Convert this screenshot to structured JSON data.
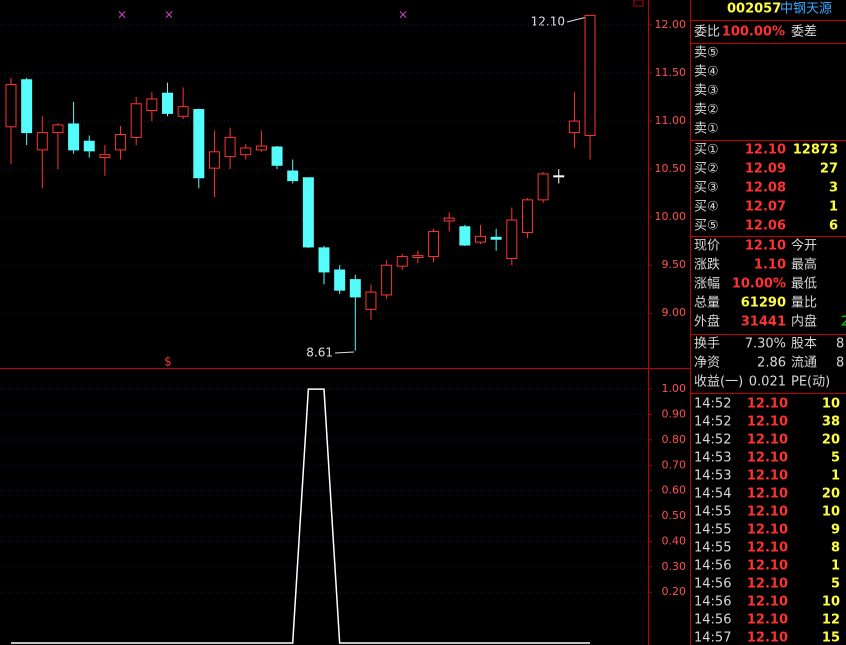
{
  "chart_data": [
    {
      "type": "candlestick",
      "up_color": "#ff3232",
      "down_color": "#54fcfc",
      "flat_color": "#ffffff",
      "grid": true,
      "open": [
        10.94,
        11.43,
        10.7,
        10.88,
        10.97,
        10.79,
        10.62,
        10.7,
        10.83,
        11.11,
        11.29,
        11.05,
        11.12,
        10.51,
        10.63,
        10.65,
        10.7,
        10.73,
        10.48,
        10.41,
        9.68,
        9.45,
        9.35,
        9.04,
        9.19,
        9.49,
        9.58,
        9.59,
        9.96,
        9.9,
        9.74,
        9.79,
        9.57,
        9.84,
        10.18,
        10.43,
        10.88,
        10.85
      ],
      "high": [
        11.45,
        11.45,
        11.05,
        10.98,
        11.2,
        10.85,
        10.75,
        10.95,
        11.25,
        11.3,
        11.4,
        11.35,
        11.13,
        10.9,
        10.93,
        10.76,
        10.9,
        10.74,
        10.6,
        10.41,
        9.7,
        9.5,
        9.4,
        9.3,
        9.55,
        9.62,
        9.65,
        9.88,
        10.05,
        9.92,
        9.92,
        9.88,
        10.1,
        10.2,
        10.47,
        10.5,
        11.3,
        12.1
      ],
      "low": [
        10.55,
        10.75,
        10.3,
        10.5,
        10.66,
        10.62,
        10.43,
        10.6,
        10.75,
        11.0,
        11.05,
        11.02,
        10.3,
        10.21,
        10.5,
        10.6,
        10.68,
        10.5,
        10.35,
        9.68,
        9.3,
        9.2,
        8.61,
        8.93,
        9.15,
        9.45,
        9.52,
        9.53,
        9.85,
        9.7,
        9.72,
        9.65,
        9.5,
        9.78,
        10.15,
        10.35,
        10.72,
        10.6
      ],
      "close": [
        11.38,
        10.88,
        10.88,
        10.96,
        10.7,
        10.69,
        10.65,
        10.86,
        11.18,
        11.23,
        11.08,
        11.15,
        10.41,
        10.68,
        10.83,
        10.72,
        10.74,
        10.54,
        10.38,
        9.69,
        9.43,
        9.24,
        9.17,
        9.22,
        9.5,
        9.59,
        9.6,
        9.85,
        9.99,
        9.71,
        9.8,
        9.77,
        9.97,
        10.18,
        10.45,
        10.43,
        11.0,
        12.1
      ],
      "ylim": [
        8.43,
        12.26
      ],
      "yticks": [
        {
          "value": 9,
          "label": "9.00"
        },
        {
          "value": 9.5,
          "label": "9.50"
        },
        {
          "value": 10,
          "label": "10.00"
        },
        {
          "value": 10.5,
          "label": "10.50"
        },
        {
          "value": 11,
          "label": "11.00"
        },
        {
          "value": 11.5,
          "label": "11.50"
        },
        {
          "value": 12,
          "label": "12.00"
        }
      ],
      "annotations": [
        "12.10",
        "8.61"
      ],
      "signal": "$"
    },
    {
      "type": "line",
      "color": "#ffffff",
      "grid": true,
      "values": [
        0,
        0,
        0,
        0,
        0,
        0,
        0,
        0,
        0,
        0,
        0,
        0,
        0,
        0,
        0,
        0,
        0,
        0,
        0,
        1,
        1,
        0,
        0,
        0,
        0,
        0,
        0,
        0,
        0,
        0,
        0,
        0,
        0,
        0,
        0,
        0,
        0,
        0
      ],
      "ylim": [
        0,
        1.083
      ],
      "yticks": [
        {
          "value": 0.2,
          "label": "0.20"
        },
        {
          "value": 0.3,
          "label": "0.30"
        },
        {
          "value": 0.4,
          "label": "0.40"
        },
        {
          "value": 0.5,
          "label": "0.50"
        },
        {
          "value": 0.6,
          "label": "0.60"
        },
        {
          "value": 0.7,
          "label": "0.70"
        },
        {
          "value": 0.8,
          "label": "0.80"
        },
        {
          "value": 0.9,
          "label": "0.90"
        },
        {
          "value": 1,
          "label": "1.00"
        }
      ]
    }
  ],
  "panel": {
    "code": "002057",
    "name": "中钢天源",
    "ratio": [
      "委比",
      "100.00%",
      "委差"
    ],
    "asks": [
      "卖⑤",
      "卖④",
      "卖③",
      "卖②",
      "卖①"
    ],
    "bids": [
      [
        "买①",
        "12.10",
        "12873"
      ],
      [
        "买②",
        "12.09",
        "27"
      ],
      [
        "买③",
        "12.08",
        "3"
      ],
      [
        "买④",
        "12.07",
        "1"
      ],
      [
        "买⑤",
        "12.06",
        "6"
      ]
    ],
    "quote": [
      [
        "现价",
        "12.10",
        "今开"
      ],
      [
        "涨跌",
        "1.10",
        "最高"
      ],
      [
        "涨幅",
        "10.00%",
        "最低"
      ],
      [
        "总量",
        "61290",
        "量比"
      ],
      [
        "外盘",
        "31441",
        "内盘",
        "2"
      ]
    ],
    "stats": [
      [
        "换手",
        "7.30%",
        "股本",
        "8"
      ],
      [
        "净资",
        "2.86",
        "流通",
        "8"
      ],
      [
        "收益(一)",
        "0.021",
        "PE(动)"
      ]
    ],
    "trades": [
      [
        "14:52",
        "12.10",
        "10"
      ],
      [
        "14:52",
        "12.10",
        "38"
      ],
      [
        "14:52",
        "12.10",
        "20"
      ],
      [
        "14:53",
        "12.10",
        "5"
      ],
      [
        "14:53",
        "12.10",
        "1"
      ],
      [
        "14:54",
        "12.10",
        "20"
      ],
      [
        "14:55",
        "12.10",
        "10"
      ],
      [
        "14:55",
        "12.10",
        "9"
      ],
      [
        "14:55",
        "12.10",
        "8"
      ],
      [
        "14:56",
        "12.10",
        "1"
      ],
      [
        "14:56",
        "12.10",
        "5"
      ],
      [
        "14:56",
        "12.10",
        "10"
      ],
      [
        "14:56",
        "12.10",
        "12"
      ],
      [
        "14:57",
        "12.10",
        "15"
      ]
    ]
  }
}
